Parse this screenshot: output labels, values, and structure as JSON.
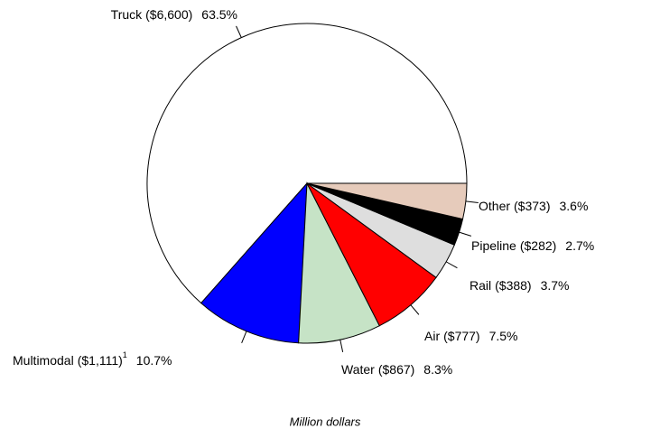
{
  "chart_data": {
    "type": "pie",
    "subtitle": "Million dollars",
    "categories": [
      "Truck",
      "Multimodal",
      "Water",
      "Air",
      "Rail",
      "Pipeline",
      "Other"
    ],
    "values": [
      6600,
      1111,
      867,
      777,
      388,
      282,
      373
    ],
    "value_labels": [
      "($6,600)",
      "($1,111)",
      "($867)",
      "($777)",
      "($388)",
      "($282)",
      "($373)"
    ],
    "label_superscripts": [
      null,
      "1",
      null,
      null,
      null,
      null,
      null
    ],
    "percents": [
      63.5,
      10.7,
      8.3,
      7.5,
      3.7,
      2.7,
      3.6
    ],
    "percent_labels": [
      "63.5%",
      "10.7%",
      "8.3%",
      "7.5%",
      "3.7%",
      "2.7%",
      "3.6%"
    ],
    "colors": [
      "#ffffff",
      "#0000ff",
      "#c6e3c6",
      "#ff0000",
      "#dedede",
      "#000000",
      "#e6cbbb"
    ]
  }
}
